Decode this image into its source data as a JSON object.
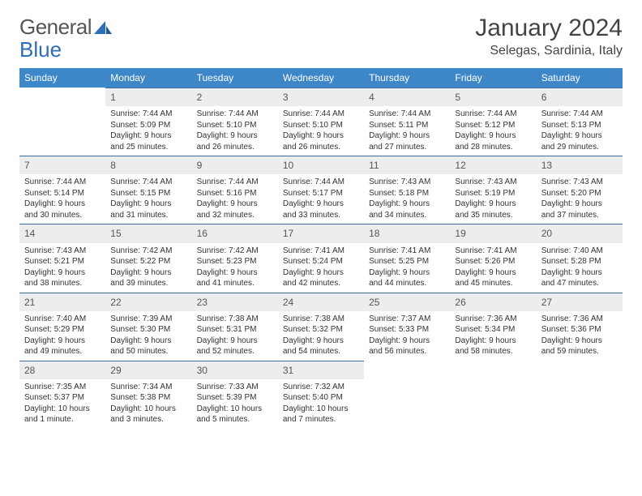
{
  "logo": {
    "text_a": "General",
    "text_b": "Blue"
  },
  "title": "January 2024",
  "location": "Selegas, Sardinia, Italy",
  "colors": {
    "header_bg": "#3d87c9",
    "header_text": "#ffffff",
    "daynum_bg": "#ebedef",
    "rule": "#3d6a9a",
    "body_text": "#333333",
    "logo_gray": "#555555",
    "logo_blue": "#2d6fb8"
  },
  "weekdays": [
    "Sunday",
    "Monday",
    "Tuesday",
    "Wednesday",
    "Thursday",
    "Friday",
    "Saturday"
  ],
  "start_offset": 1,
  "days": [
    {
      "n": "1",
      "sunrise": "Sunrise: 7:44 AM",
      "sunset": "Sunset: 5:09 PM",
      "d1": "Daylight: 9 hours",
      "d2": "and 25 minutes."
    },
    {
      "n": "2",
      "sunrise": "Sunrise: 7:44 AM",
      "sunset": "Sunset: 5:10 PM",
      "d1": "Daylight: 9 hours",
      "d2": "and 26 minutes."
    },
    {
      "n": "3",
      "sunrise": "Sunrise: 7:44 AM",
      "sunset": "Sunset: 5:10 PM",
      "d1": "Daylight: 9 hours",
      "d2": "and 26 minutes."
    },
    {
      "n": "4",
      "sunrise": "Sunrise: 7:44 AM",
      "sunset": "Sunset: 5:11 PM",
      "d1": "Daylight: 9 hours",
      "d2": "and 27 minutes."
    },
    {
      "n": "5",
      "sunrise": "Sunrise: 7:44 AM",
      "sunset": "Sunset: 5:12 PM",
      "d1": "Daylight: 9 hours",
      "d2": "and 28 minutes."
    },
    {
      "n": "6",
      "sunrise": "Sunrise: 7:44 AM",
      "sunset": "Sunset: 5:13 PM",
      "d1": "Daylight: 9 hours",
      "d2": "and 29 minutes."
    },
    {
      "n": "7",
      "sunrise": "Sunrise: 7:44 AM",
      "sunset": "Sunset: 5:14 PM",
      "d1": "Daylight: 9 hours",
      "d2": "and 30 minutes."
    },
    {
      "n": "8",
      "sunrise": "Sunrise: 7:44 AM",
      "sunset": "Sunset: 5:15 PM",
      "d1": "Daylight: 9 hours",
      "d2": "and 31 minutes."
    },
    {
      "n": "9",
      "sunrise": "Sunrise: 7:44 AM",
      "sunset": "Sunset: 5:16 PM",
      "d1": "Daylight: 9 hours",
      "d2": "and 32 minutes."
    },
    {
      "n": "10",
      "sunrise": "Sunrise: 7:44 AM",
      "sunset": "Sunset: 5:17 PM",
      "d1": "Daylight: 9 hours",
      "d2": "and 33 minutes."
    },
    {
      "n": "11",
      "sunrise": "Sunrise: 7:43 AM",
      "sunset": "Sunset: 5:18 PM",
      "d1": "Daylight: 9 hours",
      "d2": "and 34 minutes."
    },
    {
      "n": "12",
      "sunrise": "Sunrise: 7:43 AM",
      "sunset": "Sunset: 5:19 PM",
      "d1": "Daylight: 9 hours",
      "d2": "and 35 minutes."
    },
    {
      "n": "13",
      "sunrise": "Sunrise: 7:43 AM",
      "sunset": "Sunset: 5:20 PM",
      "d1": "Daylight: 9 hours",
      "d2": "and 37 minutes."
    },
    {
      "n": "14",
      "sunrise": "Sunrise: 7:43 AM",
      "sunset": "Sunset: 5:21 PM",
      "d1": "Daylight: 9 hours",
      "d2": "and 38 minutes."
    },
    {
      "n": "15",
      "sunrise": "Sunrise: 7:42 AM",
      "sunset": "Sunset: 5:22 PM",
      "d1": "Daylight: 9 hours",
      "d2": "and 39 minutes."
    },
    {
      "n": "16",
      "sunrise": "Sunrise: 7:42 AM",
      "sunset": "Sunset: 5:23 PM",
      "d1": "Daylight: 9 hours",
      "d2": "and 41 minutes."
    },
    {
      "n": "17",
      "sunrise": "Sunrise: 7:41 AM",
      "sunset": "Sunset: 5:24 PM",
      "d1": "Daylight: 9 hours",
      "d2": "and 42 minutes."
    },
    {
      "n": "18",
      "sunrise": "Sunrise: 7:41 AM",
      "sunset": "Sunset: 5:25 PM",
      "d1": "Daylight: 9 hours",
      "d2": "and 44 minutes."
    },
    {
      "n": "19",
      "sunrise": "Sunrise: 7:41 AM",
      "sunset": "Sunset: 5:26 PM",
      "d1": "Daylight: 9 hours",
      "d2": "and 45 minutes."
    },
    {
      "n": "20",
      "sunrise": "Sunrise: 7:40 AM",
      "sunset": "Sunset: 5:28 PM",
      "d1": "Daylight: 9 hours",
      "d2": "and 47 minutes."
    },
    {
      "n": "21",
      "sunrise": "Sunrise: 7:40 AM",
      "sunset": "Sunset: 5:29 PM",
      "d1": "Daylight: 9 hours",
      "d2": "and 49 minutes."
    },
    {
      "n": "22",
      "sunrise": "Sunrise: 7:39 AM",
      "sunset": "Sunset: 5:30 PM",
      "d1": "Daylight: 9 hours",
      "d2": "and 50 minutes."
    },
    {
      "n": "23",
      "sunrise": "Sunrise: 7:38 AM",
      "sunset": "Sunset: 5:31 PM",
      "d1": "Daylight: 9 hours",
      "d2": "and 52 minutes."
    },
    {
      "n": "24",
      "sunrise": "Sunrise: 7:38 AM",
      "sunset": "Sunset: 5:32 PM",
      "d1": "Daylight: 9 hours",
      "d2": "and 54 minutes."
    },
    {
      "n": "25",
      "sunrise": "Sunrise: 7:37 AM",
      "sunset": "Sunset: 5:33 PM",
      "d1": "Daylight: 9 hours",
      "d2": "and 56 minutes."
    },
    {
      "n": "26",
      "sunrise": "Sunrise: 7:36 AM",
      "sunset": "Sunset: 5:34 PM",
      "d1": "Daylight: 9 hours",
      "d2": "and 58 minutes."
    },
    {
      "n": "27",
      "sunrise": "Sunrise: 7:36 AM",
      "sunset": "Sunset: 5:36 PM",
      "d1": "Daylight: 9 hours",
      "d2": "and 59 minutes."
    },
    {
      "n": "28",
      "sunrise": "Sunrise: 7:35 AM",
      "sunset": "Sunset: 5:37 PM",
      "d1": "Daylight: 10 hours",
      "d2": "and 1 minute."
    },
    {
      "n": "29",
      "sunrise": "Sunrise: 7:34 AM",
      "sunset": "Sunset: 5:38 PM",
      "d1": "Daylight: 10 hours",
      "d2": "and 3 minutes."
    },
    {
      "n": "30",
      "sunrise": "Sunrise: 7:33 AM",
      "sunset": "Sunset: 5:39 PM",
      "d1": "Daylight: 10 hours",
      "d2": "and 5 minutes."
    },
    {
      "n": "31",
      "sunrise": "Sunrise: 7:32 AM",
      "sunset": "Sunset: 5:40 PM",
      "d1": "Daylight: 10 hours",
      "d2": "and 7 minutes."
    }
  ]
}
